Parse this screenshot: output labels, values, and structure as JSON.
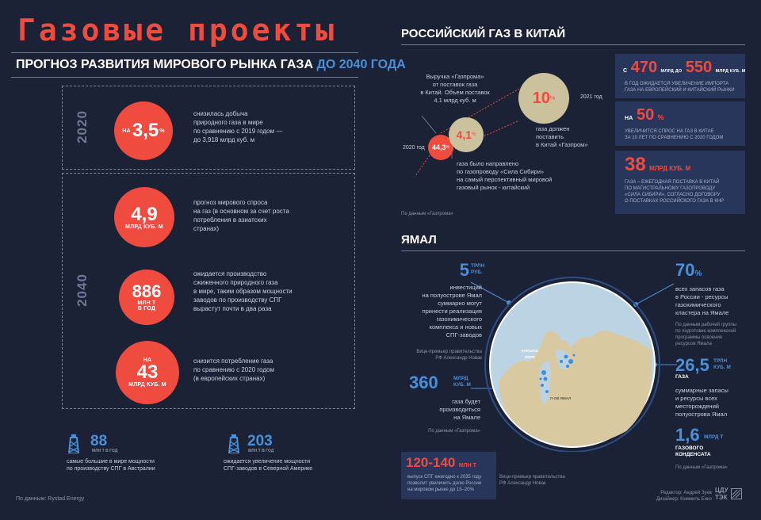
{
  "left": {
    "title": "Газовые проекты",
    "subtitle_main": "ПРОГНОЗ РАЗВИТИЯ МИРОВОГО РЫНКА ГАЗА",
    "subtitle_hl": "ДО 2040 ГОДА",
    "year_2020": "2020",
    "year_2040": "2040",
    "stat1": {
      "pre": "НА",
      "value": "3,5",
      "unit": "%",
      "text": [
        "снизилась добыча",
        "природного газа в мире",
        "по сравнению с 2019 годом —",
        "до 3,918 млрд куб. м"
      ]
    },
    "stat2": {
      "value": "4,9",
      "unit": "МЛРД КУБ. М",
      "text": [
        "прогноз мирового спроса",
        "на газ (в основном за счет роста",
        "потребления в азиатских",
        "странах)"
      ]
    },
    "stat3": {
      "value": "886",
      "unit1": "МЛН Т",
      "unit2": "В ГОД",
      "text": [
        "ожидается производство",
        "сжиженного природного газа",
        "в мире, таким образом мощности",
        "заводов по производству СПГ",
        "вырастут почти в два раза"
      ]
    },
    "stat4": {
      "pre": "НА",
      "value": "43",
      "unit": "МЛРД КУБ. М",
      "text": [
        "снизится потребление газа",
        "по сравнению с 2020 годом",
        "(в европейских странах)"
      ]
    },
    "fact1": {
      "value": "88",
      "unit": "МЛН Т В ГОД",
      "text": [
        "самые большие в мире мощности",
        "по производству СПГ  в Австралии"
      ]
    },
    "fact2": {
      "value": "203",
      "unit": "МЛН Т В ГОД",
      "text": [
        "ожидается увеличение мощности",
        "СПГ-заводов в Северной Америке"
      ]
    },
    "source": "По данным: Rystad Energy"
  },
  "china": {
    "header": "РОССИЙСКИЙ ГАЗ В КИТАЙ",
    "revenue_text": [
      "Выручка «Газпрома»",
      "от поставок газа",
      "в Китай. Объем поставок",
      "4,1 млрд куб. м"
    ],
    "year_2020": "2020 год",
    "year_2021": "2021 год",
    "c_small": "44,3",
    "c_small_unit": "%",
    "c_mid": "4,1",
    "c_mid_unit": "%",
    "c_big": "10",
    "c_big_unit": "%",
    "c_big_text": [
      "газа должен",
      "поставить",
      "в Китай «Газпром»"
    ],
    "pipe_text": [
      "газа было направлено",
      "по газопроводу «Сила Сибири»",
      "на самый перспективный мировой",
      "газовый рынок - китайский"
    ],
    "source": "По данным «Газпрома»",
    "box1": {
      "pre": "С",
      "v1": "470",
      "mid": "МЛРД  ДО",
      "v2": "550",
      "unit": "МЛРД КУБ. М",
      "text": [
        "В ГОД ОЖИДАЕТСЯ УВЕЛИЧЕНИЕ  ИМПОРТА",
        "ГАЗА НА ЕВРОПЕЙСКИЙ И КИТАЙСКИЙ РЫНКИ"
      ]
    },
    "box2": {
      "pre": "НА",
      "value": "50",
      "unit": "%",
      "text": [
        "УВЕЛИЧИТСЯ СПРОС НА ГАЗ В КИТАЕ",
        "ЗА 10 ЛЕТ ПО СРАВНЕНИЮ С 2020 ГОДОМ"
      ]
    },
    "box3": {
      "value": "38",
      "unit": "МЛРД КУБ. М",
      "text": [
        "ГАЗА – ЕЖЕГОДНАЯ ПОСТАВКА В КИТАЙ",
        "ПО МАГИСТРАЛЬНОМУ ГАЗОПРОВОДУ",
        "«СИЛА СИБИРИ», СОГЛАСНО ДОГОВОРУ",
        "О ПОСТАВКАХ РОССИЙСКОГО ГАЗА В КНР"
      ]
    }
  },
  "yamal": {
    "header": "ЯМАЛ",
    "s1": {
      "value": "5",
      "unit1": "ТРЛН",
      "unit2": "РУБ.",
      "text": [
        "инвестиций",
        "на полуострове Ямал",
        "суммарно могут",
        "принести реализация",
        "газохимического",
        "комплекса и новых",
        "СПГ-заводов"
      ],
      "note": [
        "Вице-премьер правительства",
        "РФ Александр Новак"
      ]
    },
    "s2": {
      "value": "360",
      "unit1": "МЛРД",
      "unit2": "КУБ. М",
      "text": [
        "газа будет",
        "производиться",
        "на Ямале"
      ],
      "note": [
        "По данным «Газпрома»"
      ]
    },
    "s3": {
      "value": "70",
      "unit": "%",
      "text": [
        "всех запасов газа",
        "в России  - ресурсы",
        "газохимического",
        "кластера на Ямале"
      ],
      "note": [
        "По данным рабочей группы",
        "по подготовке комплексной",
        "программы освоения",
        "ресурсов Ямала"
      ]
    },
    "s4": {
      "value": "26,5",
      "unit1": "ТРЛН",
      "unit2": "КУБ. М",
      "label": "ГАЗА",
      "text": [
        "суммарные запасы",
        "и ресурсы всех",
        "месторождений",
        "полуострова Ямал"
      ]
    },
    "s5": {
      "value": "1,6",
      "unit1": "МЛРД Т",
      "label1": "ГАЗОВОГО",
      "label2": "КОНДЕНСАТА",
      "note": [
        "По данным «Газпрома»"
      ]
    },
    "map_label1": "КАРСКОЕ",
    "map_label2": "МОРЕ",
    "map_label3": "П-ОВ ЯМАЛ",
    "lng": {
      "value": "120-140",
      "unit": "МЛН Т",
      "text": [
        "выпуск СПГ ежегодно к 2035 году",
        "позволит увеличить долю России",
        "на мировом рынке до 15–20%"
      ],
      "note": [
        "Вице-премьер правительства",
        "РФ Александр Новак"
      ]
    }
  },
  "credits": {
    "editor": "Редактор: Андрей Зуев",
    "designer": "Дизайнер: Кэммиль Енко",
    "logo_top": "ЦДУ",
    "logo_bottom": "ТЭК"
  }
}
